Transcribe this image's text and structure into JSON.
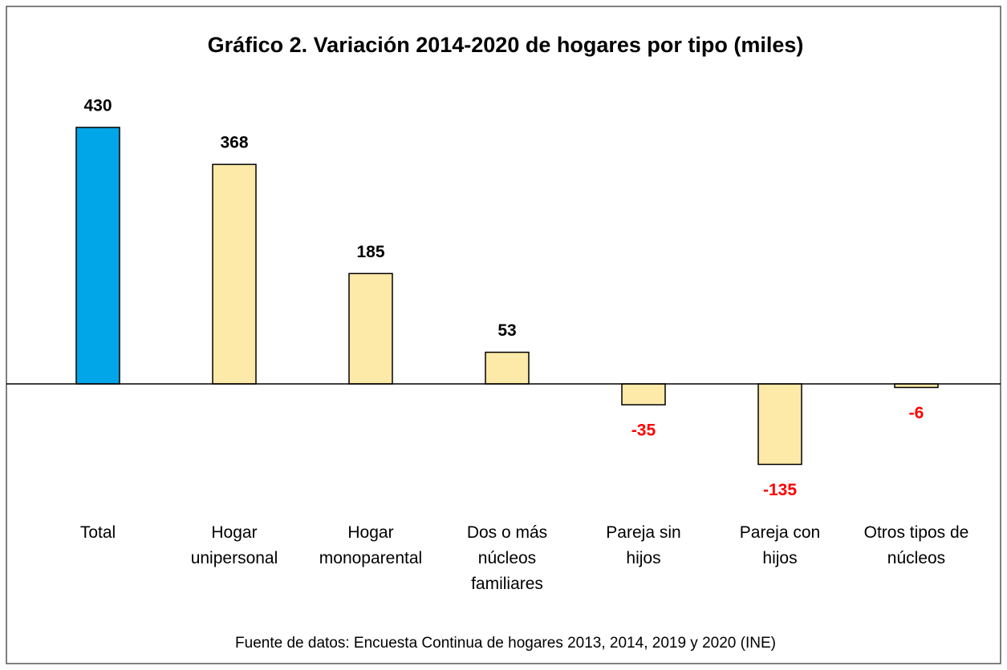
{
  "chart_data": {
    "type": "bar",
    "title": "Gráfico 2. Variación  2014-2020 de hogares por tipo (miles)",
    "categories": [
      "Total",
      "Hogar\nunipersonal",
      "Hogar\nmonoparental",
      "Dos o más\nnúcleos\nfamiliares",
      "Pareja sin\nhijos",
      "Pareja con\nhijos",
      "Otros tipos de\nnúcleos"
    ],
    "values": [
      430,
      368,
      185,
      53,
      -35,
      -135,
      -6
    ],
    "colors": [
      "#00a6e8",
      "#fde9a8",
      "#fde9a8",
      "#fde9a8",
      "#fde9a8",
      "#fde9a8",
      "#fde9a8"
    ],
    "negative_label_color": "#ff0000",
    "note": "Fuente de datos: Encuesta Continua de hogares 2013, 2014, 2019 y 2020 (INE)"
  }
}
